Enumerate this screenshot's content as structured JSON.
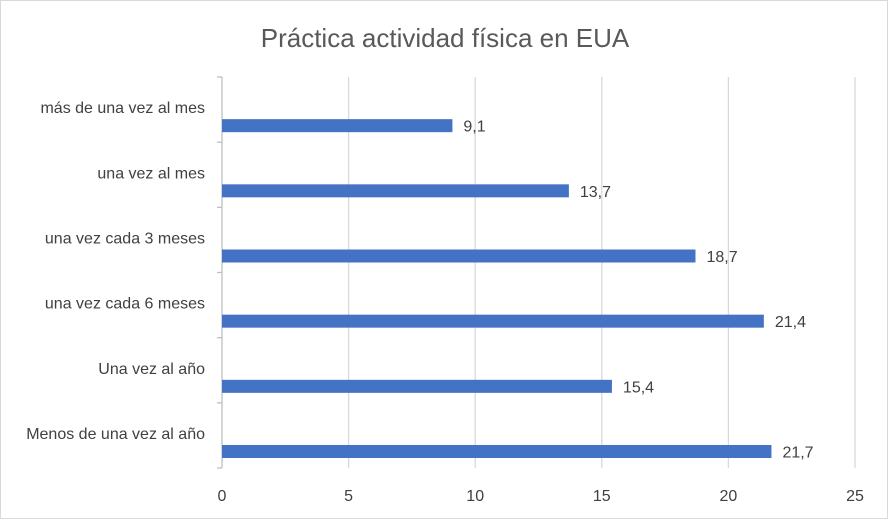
{
  "chart_data": {
    "type": "bar",
    "orientation": "horizontal",
    "title": "Práctica actividad física en EUA",
    "xlabel": "",
    "ylabel": "",
    "categories": [
      "Menos de una vez al año",
      "Una vez al año",
      "una vez cada 6 meses",
      "una vez cada 3 meses",
      "una vez al mes",
      "más de una vez al mes"
    ],
    "values": [
      21.7,
      15.4,
      21.4,
      18.7,
      13.7,
      9.1
    ],
    "data_labels": [
      "21,7",
      "15,4",
      "21,4",
      "18,7",
      "13,7",
      "9,1"
    ],
    "xlim": [
      0,
      25
    ],
    "xticks": [
      0,
      5,
      10,
      15,
      20,
      25
    ],
    "grid": "vertical",
    "legend": "none",
    "bar_color": "#4472c4"
  }
}
